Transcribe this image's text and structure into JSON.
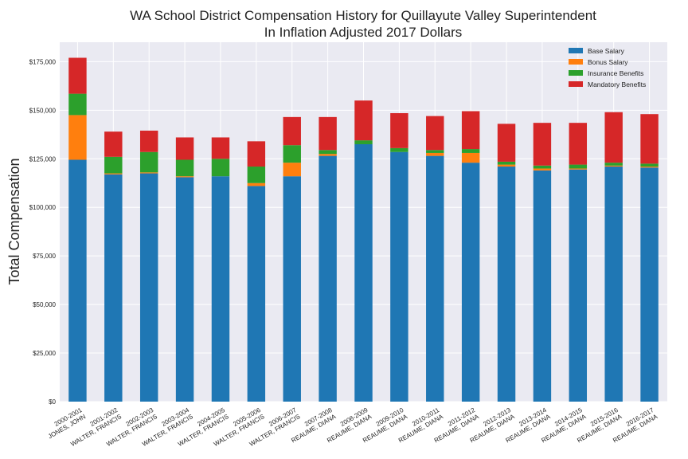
{
  "chart_data": {
    "type": "bar",
    "stacked": true,
    "title_lines": [
      "WA School District Compensation History for Quillayute Valley Superintendent",
      "In Inflation Adjusted 2017 Dollars"
    ],
    "xlabel": "",
    "ylabel": "Total Compensation",
    "ylim": [
      0,
      185000
    ],
    "yticks": [
      0,
      25000,
      50000,
      75000,
      100000,
      125000,
      150000,
      175000
    ],
    "ytick_labels": [
      "$0",
      "$25,000",
      "$50,000",
      "$75,000",
      "$100,000",
      "$125,000",
      "$150,000",
      "$175,000"
    ],
    "grid": true,
    "legend_position": "top-right",
    "categories": [
      [
        "2000-2001",
        "JONES, JOHN"
      ],
      [
        "2001-2002",
        "WALTER, FRANCIS"
      ],
      [
        "2002-2003",
        "WALTER, FRANCIS"
      ],
      [
        "2003-2004",
        "WALTER, FRANCIS"
      ],
      [
        "2004-2005",
        "WALTER, FRANCIS"
      ],
      [
        "2005-2006",
        "WALTER, FRANCIS"
      ],
      [
        "2006-2007",
        "WALTER, FRANCIS"
      ],
      [
        "2007-2008",
        "REAUME, DIANA"
      ],
      [
        "2008-2009",
        "REAUME, DIANA"
      ],
      [
        "2009-2010",
        "REAUME, DIANA"
      ],
      [
        "2010-2011",
        "REAUME, DIANA"
      ],
      [
        "2011-2012",
        "REAUME, DIANA"
      ],
      [
        "2012-2013",
        "REAUME, DIANA"
      ],
      [
        "2013-2014",
        "REAUME, DIANA"
      ],
      [
        "2014-2015",
        "REAUME, DIANA"
      ],
      [
        "2015-2016",
        "REAUME, DIANA"
      ],
      [
        "2016-2017",
        "REAUME, DIANA"
      ]
    ],
    "series": [
      {
        "name": "Base Salary",
        "color": "#1f77b4",
        "values": [
          124500,
          117000,
          117500,
          115500,
          116000,
          111000,
          116000,
          126500,
          132500,
          128500,
          126500,
          123000,
          121000,
          119000,
          119500,
          121000,
          120500
        ]
      },
      {
        "name": "Bonus Salary",
        "color": "#ff7f0e",
        "values": [
          23000,
          500,
          500,
          500,
          0,
          1500,
          7000,
          1000,
          0,
          0,
          1500,
          5000,
          1000,
          1000,
          500,
          500,
          500
        ]
      },
      {
        "name": "Insurance Benefits",
        "color": "#2ca02c",
        "values": [
          11000,
          8500,
          10500,
          8500,
          9000,
          8500,
          9000,
          2000,
          2000,
          2000,
          1500,
          2000,
          1500,
          1500,
          2000,
          1500,
          1500
        ]
      },
      {
        "name": "Mandatory Benefits",
        "color": "#d62728",
        "values": [
          18500,
          13000,
          11000,
          11500,
          11000,
          13000,
          14500,
          17000,
          20500,
          18000,
          17500,
          19500,
          19500,
          22000,
          21500,
          26000,
          25500
        ]
      }
    ]
  }
}
